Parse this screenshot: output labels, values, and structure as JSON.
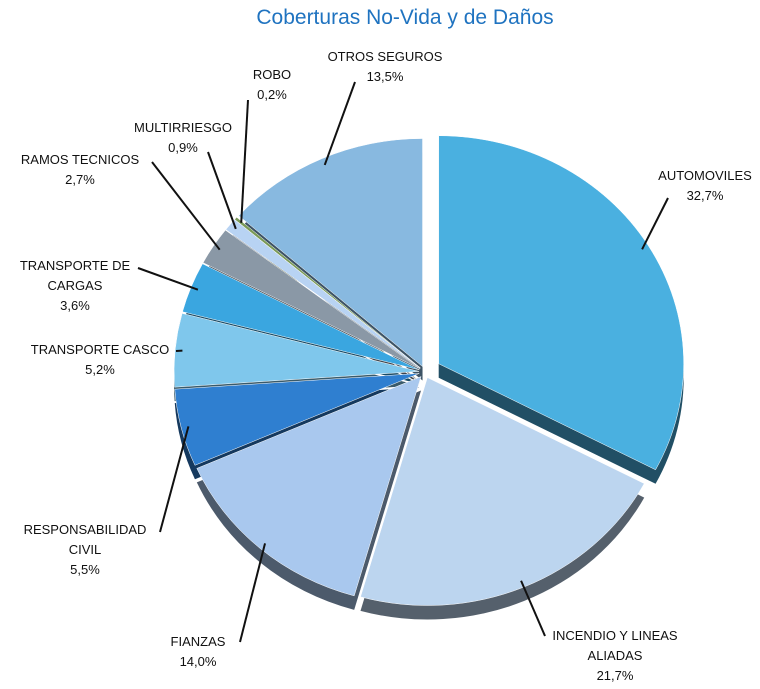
{
  "chart_data": {
    "type": "pie",
    "title": "Coberturas No-Vida y de Daños",
    "categories": [
      "AUTOMOVILES",
      "INCENDIO Y LINEAS ALIADAS",
      "FIANZAS",
      "RESPONSABILIDAD CIVIL",
      "TRANSPORTE CASCO",
      "TRANSPORTE DE CARGAS",
      "RAMOS TECNICOS",
      "MULTIRRIESGO",
      "ROBO",
      "OTROS SEGUROS"
    ],
    "values": [
      32.7,
      21.7,
      14.0,
      5.5,
      5.2,
      3.6,
      2.7,
      0.9,
      0.2,
      13.5
    ],
    "value_labels": [
      "32,7%",
      "21,7%",
      "14,0%",
      "5,5%",
      "5,2%",
      "3,6%",
      "2,7%",
      "0,9%",
      "0,2%",
      "13,5%"
    ],
    "colors": [
      "#4ab0e0",
      "#bcd5ef",
      "#a9c8ee",
      "#2f7fd0",
      "#7fc7ec",
      "#3aa6e0",
      "#8a98a6",
      "#b8d3f3",
      "#7a9a58",
      "#88b9e0"
    ]
  }
}
